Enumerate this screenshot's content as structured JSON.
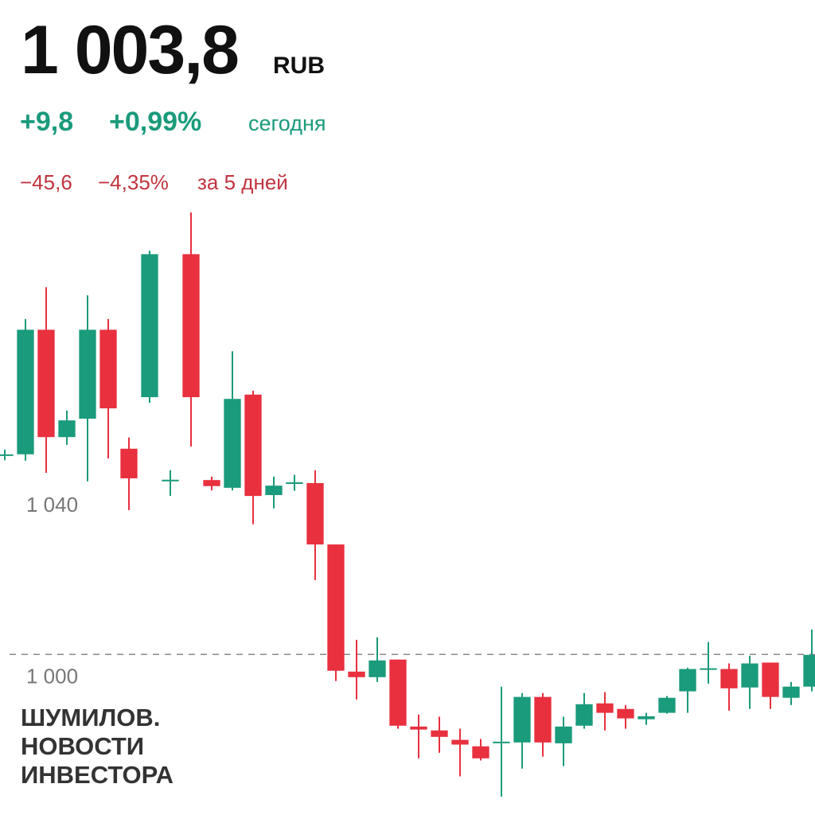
{
  "header": {
    "price": {
      "value": 1003.8,
      "label": "1 003,8"
    },
    "currency": "RUB",
    "today_change": "+9,8",
    "today_change_pct": "+0,99%",
    "today_label": "сегодня",
    "week_change": "−45,6",
    "week_change_pct": "−4,35%",
    "week_label": "за 5 дней"
  },
  "watermark": [
    "ШУМИЛОВ.",
    "НОВОСТИ",
    "ИНВЕСТОРА"
  ],
  "chart_data": {
    "type": "candlestick",
    "up_color": "#1a9b7b",
    "down_color": "#e8303f",
    "grid": false,
    "ylim": [
      969,
      1108
    ],
    "yticks": [
      {
        "value": 1040,
        "label": "1 040"
      },
      {
        "value": 1000,
        "label": "1 000"
      }
    ],
    "categories": [
      null,
      null,
      null,
      null,
      null,
      null,
      null,
      null,
      null,
      null,
      null,
      null,
      null,
      null,
      null,
      null,
      null,
      null,
      null,
      null,
      null,
      null,
      null,
      null,
      null,
      null,
      null,
      null,
      null,
      null,
      null,
      null,
      null,
      null,
      null,
      null,
      null,
      null,
      null,
      null
    ],
    "open": [
      1050.2,
      1050.4,
      1079.4,
      1054.4,
      1058.7,
      1079.4,
      1051.7,
      1063.7,
      1044.3,
      1097,
      1044.4,
      1042.6,
      1064.3,
      1040.9,
      1043.7,
      1043.7,
      1029.4,
      999.8,
      998.5,
      1002.6,
      987,
      986.1,
      983.9,
      982.4,
      983.3,
      983.3,
      993.9,
      983.1,
      987.2,
      992.4,
      991.1,
      988.7,
      990.2,
      995.2,
      1000.4,
      1000.4,
      996.1,
      1001.9,
      993.7,
      996.3
    ],
    "high": [
      1051.5,
      1081.9,
      1089.3,
      1060.6,
      1087.4,
      1081.9,
      1054.3,
      1097.8,
      1046.7,
      1106.7,
      1045.2,
      1074.4,
      1065.2,
      1045.2,
      1045.6,
      1046.7,
      1029.4,
      1007.2,
      1007.8,
      1002.6,
      989.8,
      989.3,
      986.5,
      984.1,
      996.3,
      994.8,
      994.8,
      989.3,
      994.8,
      995,
      992,
      990.2,
      994.1,
      1000.7,
      1006.7,
      1001.7,
      1003.5,
      1001.9,
      997.4,
      1009.6
    ],
    "low": [
      1049,
      1048.9,
      1046.1,
      1052.6,
      1044.1,
      1049.4,
      1037.4,
      1062.4,
      1040.7,
      1052.2,
      1042,
      1042,
      1034.1,
      1037.8,
      1041.9,
      1021.1,
      997.6,
      993.3,
      997.4,
      986.5,
      979.6,
      980.9,
      975.4,
      979.1,
      970.7,
      977.2,
      980,
      977.8,
      986.5,
      986.1,
      986.5,
      987.4,
      990,
      990.2,
      997,
      990.7,
      991.1,
      991.1,
      992,
      995.2
    ],
    "close": [
      1050.2,
      1079.4,
      1054.4,
      1058.3,
      1079.4,
      1061.1,
      1044.8,
      1097,
      1044.3,
      1063.7,
      1043,
      1063.3,
      1040.7,
      1043.1,
      1043.7,
      1029.4,
      1000,
      998.5,
      1002.4,
      987.2,
      986.3,
      984.6,
      982.8,
      979.6,
      983.3,
      993.9,
      983.3,
      987,
      992.2,
      990.2,
      988.9,
      989.4,
      993.7,
      1000.4,
      1000.4,
      995.9,
      1001.7,
      993.9,
      996.3,
      1003.7
    ]
  }
}
